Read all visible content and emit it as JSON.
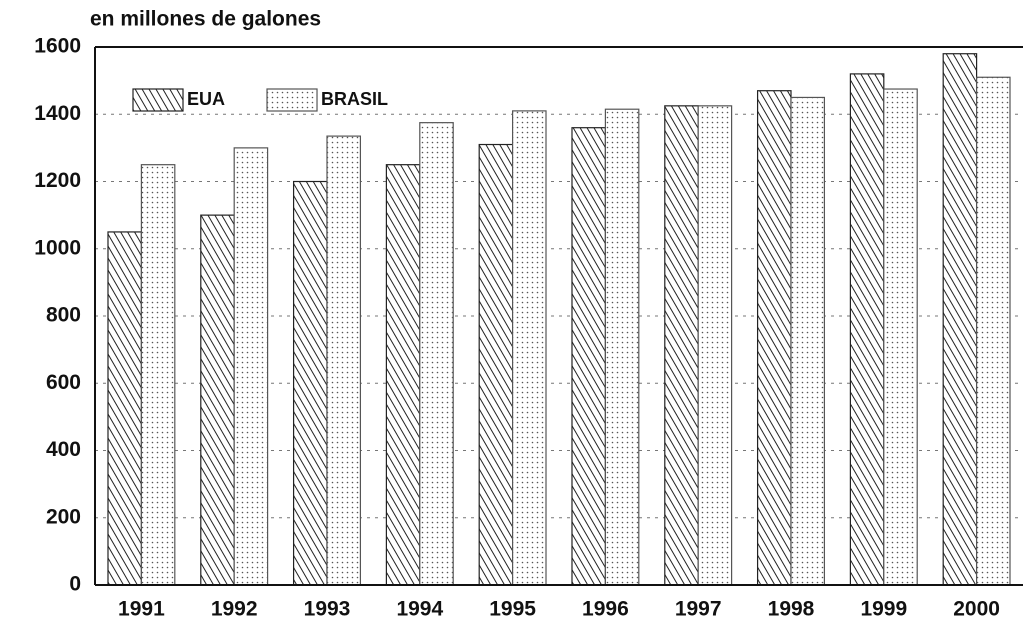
{
  "chart_data": {
    "type": "bar",
    "title": "en millones de galones",
    "categories": [
      "1991",
      "1992",
      "1993",
      "1994",
      "1995",
      "1996",
      "1997",
      "1998",
      "1999",
      "2000"
    ],
    "series": [
      {
        "name": "EUA",
        "color": "#222222",
        "pattern": "hatch",
        "values": [
          1050,
          1100,
          1200,
          1250,
          1310,
          1360,
          1425,
          1470,
          1520,
          1580
        ]
      },
      {
        "name": "BRASIL",
        "color": "#555555",
        "pattern": "dots",
        "values": [
          1250,
          1300,
          1335,
          1375,
          1410,
          1415,
          1425,
          1450,
          1475,
          1510
        ]
      }
    ],
    "ylim": [
      0,
      1600
    ],
    "yticks": [
      0,
      200,
      400,
      600,
      800,
      1000,
      1200,
      1400,
      1600
    ],
    "grid": true,
    "legend": "upper left"
  }
}
